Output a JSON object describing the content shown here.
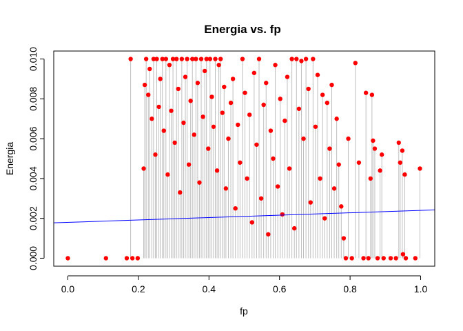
{
  "chart_data": {
    "type": "scatter",
    "title": "Energia vs. fp",
    "xlabel": "fp",
    "ylabel": "Energia",
    "xlim": [
      -0.04,
      1.04
    ],
    "ylim": [
      -0.0004,
      0.0104
    ],
    "x_ticks": [
      "0.0",
      "0.2",
      "0.4",
      "0.6",
      "0.8",
      "1.0"
    ],
    "y_ticks": [
      "0.000",
      "0.002",
      "0.004",
      "0.006",
      "0.008",
      "0.010"
    ],
    "grid": false,
    "legend": "none",
    "point_color": "#ff0000",
    "stem_color": "#bebebe",
    "regression_line": {
      "intercept": 0.0018,
      "slope": 0.0006,
      "color": "#0000ff"
    },
    "series": [
      {
        "values": [
          [
            0.0,
            0.0
          ],
          [
            0.108,
            0.0
          ],
          [
            0.167,
            0.0
          ],
          [
            0.178,
            0.01
          ],
          [
            0.183,
            0.0
          ],
          [
            0.198,
            0.0
          ],
          [
            0.215,
            0.0045
          ],
          [
            0.218,
            0.0087
          ],
          [
            0.222,
            0.01
          ],
          [
            0.228,
            0.0082
          ],
          [
            0.232,
            0.0095
          ],
          [
            0.238,
            0.007
          ],
          [
            0.243,
            0.01
          ],
          [
            0.248,
            0.0052
          ],
          [
            0.252,
            0.01
          ],
          [
            0.258,
            0.0076
          ],
          [
            0.262,
            0.009
          ],
          [
            0.268,
            0.01
          ],
          [
            0.272,
            0.0064
          ],
          [
            0.278,
            0.01
          ],
          [
            0.283,
            0.0042
          ],
          [
            0.288,
            0.0097
          ],
          [
            0.293,
            0.0074
          ],
          [
            0.298,
            0.01
          ],
          [
            0.303,
            0.0058
          ],
          [
            0.308,
            0.01
          ],
          [
            0.313,
            0.0085
          ],
          [
            0.318,
            0.0033
          ],
          [
            0.323,
            0.01
          ],
          [
            0.328,
            0.0068
          ],
          [
            0.333,
            0.0091
          ],
          [
            0.338,
            0.01
          ],
          [
            0.343,
            0.0047
          ],
          [
            0.348,
            0.0079
          ],
          [
            0.353,
            0.01
          ],
          [
            0.358,
            0.0062
          ],
          [
            0.363,
            0.01
          ],
          [
            0.368,
            0.0088
          ],
          [
            0.373,
            0.0038
          ],
          [
            0.378,
            0.01
          ],
          [
            0.383,
            0.0071
          ],
          [
            0.388,
            0.0094
          ],
          [
            0.393,
            0.01
          ],
          [
            0.398,
            0.0055
          ],
          [
            0.403,
            0.01
          ],
          [
            0.408,
            0.0081
          ],
          [
            0.413,
            0.0066
          ],
          [
            0.418,
            0.01
          ],
          [
            0.423,
            0.0044
          ],
          [
            0.428,
            0.0097
          ],
          [
            0.433,
            0.01
          ],
          [
            0.438,
            0.0073
          ],
          [
            0.443,
            0.0086
          ],
          [
            0.448,
            0.0035
          ],
          [
            0.455,
            0.006
          ],
          [
            0.462,
            0.0078
          ],
          [
            0.468,
            0.009
          ],
          [
            0.475,
            0.0025
          ],
          [
            0.482,
            0.0067
          ],
          [
            0.488,
            0.0048
          ],
          [
            0.495,
            0.01
          ],
          [
            0.502,
            0.0083
          ],
          [
            0.508,
            0.004
          ],
          [
            0.515,
            0.0072
          ],
          [
            0.522,
            0.0018
          ],
          [
            0.528,
            0.0093
          ],
          [
            0.535,
            0.0057
          ],
          [
            0.542,
            0.01
          ],
          [
            0.548,
            0.003
          ],
          [
            0.555,
            0.0077
          ],
          [
            0.562,
            0.0088
          ],
          [
            0.568,
            0.0012
          ],
          [
            0.575,
            0.0064
          ],
          [
            0.582,
            0.005
          ],
          [
            0.588,
            0.0097
          ],
          [
            0.595,
            0.0036
          ],
          [
            0.602,
            0.008
          ],
          [
            0.608,
            0.0022
          ],
          [
            0.615,
            0.0069
          ],
          [
            0.622,
            0.0091
          ],
          [
            0.628,
            0.0045
          ],
          [
            0.635,
            0.01
          ],
          [
            0.642,
            0.0015
          ],
          [
            0.648,
            0.01
          ],
          [
            0.655,
            0.0075
          ],
          [
            0.662,
            0.0099
          ],
          [
            0.668,
            0.006
          ],
          [
            0.675,
            0.01
          ],
          [
            0.682,
            0.0085
          ],
          [
            0.688,
            0.0028
          ],
          [
            0.695,
            0.01
          ],
          [
            0.702,
            0.0066
          ],
          [
            0.708,
            0.0092
          ],
          [
            0.715,
            0.004
          ],
          [
            0.722,
            0.0082
          ],
          [
            0.728,
            0.002
          ],
          [
            0.735,
            0.0078
          ],
          [
            0.742,
            0.0055
          ],
          [
            0.748,
            0.0087
          ],
          [
            0.755,
            0.0035
          ],
          [
            0.762,
            0.007
          ],
          [
            0.768,
            0.0047
          ],
          [
            0.775,
            0.0026
          ],
          [
            0.782,
            0.001
          ],
          [
            0.788,
            0.0
          ],
          [
            0.795,
            0.006
          ],
          [
            0.805,
            0.0
          ],
          [
            0.815,
            0.0098
          ],
          [
            0.825,
            0.0048
          ],
          [
            0.838,
            0.0
          ],
          [
            0.845,
            0.0083
          ],
          [
            0.852,
            0.0
          ],
          [
            0.858,
            0.004
          ],
          [
            0.862,
            0.0082
          ],
          [
            0.865,
            0.0059
          ],
          [
            0.87,
            0.0055
          ],
          [
            0.878,
            0.0
          ],
          [
            0.885,
            0.0044
          ],
          [
            0.89,
            0.0052
          ],
          [
            0.895,
            0.0
          ],
          [
            0.915,
            0.0
          ],
          [
            0.93,
            0.0
          ],
          [
            0.938,
            0.0058
          ],
          [
            0.942,
            0.0048
          ],
          [
            0.948,
            0.0054
          ],
          [
            0.95,
            0.0002
          ],
          [
            0.955,
            0.0042
          ],
          [
            0.958,
            0.0
          ],
          [
            0.985,
            0.0
          ],
          [
            0.998,
            0.0045
          ]
        ]
      }
    ]
  }
}
